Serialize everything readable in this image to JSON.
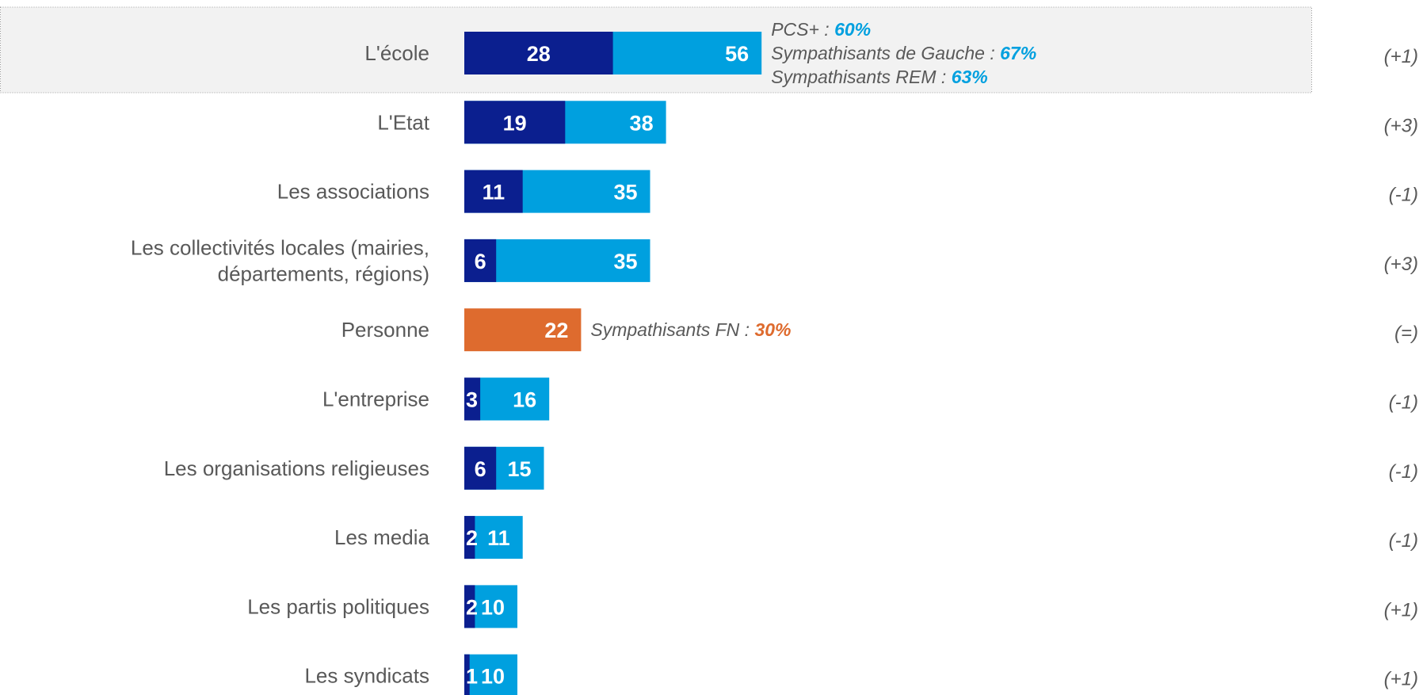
{
  "chart_data": {
    "type": "bar",
    "stacked": true,
    "colors": {
      "first": "#0B1F8F",
      "total": "#00A0DF",
      "highlight": "#DE6B2E",
      "text": "#595959"
    },
    "highlight_category": "L'école",
    "categories": [
      "L'école",
      "L'Etat",
      "Les associations",
      "Les collectivités locales (mairies, départements, régions)",
      "Personne",
      "L'entreprise",
      "Les organisations religieuses",
      "Les media",
      "Les partis politiques",
      "Les syndicats"
    ],
    "label_lines": [
      [
        "L'école"
      ],
      [
        "L'Etat"
      ],
      [
        "Les associations"
      ],
      [
        "Les collectivités locales (mairies,",
        "départements, régions)"
      ],
      [
        "Personne"
      ],
      [
        "L'entreprise"
      ],
      [
        "Les organisations religieuses"
      ],
      [
        "Les media"
      ],
      [
        "Les partis politiques"
      ],
      [
        "Les syndicats"
      ]
    ],
    "series": [
      {
        "key": "first",
        "values": [
          28,
          19,
          11,
          6,
          null,
          3,
          6,
          2,
          2,
          1
        ]
      },
      {
        "key": "total",
        "values": [
          56,
          38,
          35,
          35,
          22,
          16,
          15,
          11,
          10,
          10
        ]
      }
    ],
    "evolution": [
      "(+1)",
      "(+3)",
      "(-1)",
      "(+3)",
      "(=)",
      "(-1)",
      "(-1)",
      "(-1)",
      "(+1)",
      "(+1)"
    ],
    "annotations": [
      {
        "category": "L'école",
        "lines": [
          {
            "text": "PCS+ : ",
            "value": "60%"
          },
          {
            "text": "Sympathisants de Gauche : ",
            "value": "67%"
          },
          {
            "text": "Sympathisants REM : ",
            "value": "63%"
          }
        ]
      },
      {
        "category": "Personne",
        "lines": [
          {
            "text": "Sympathisants FN : ",
            "value": "30%"
          }
        ]
      }
    ]
  }
}
